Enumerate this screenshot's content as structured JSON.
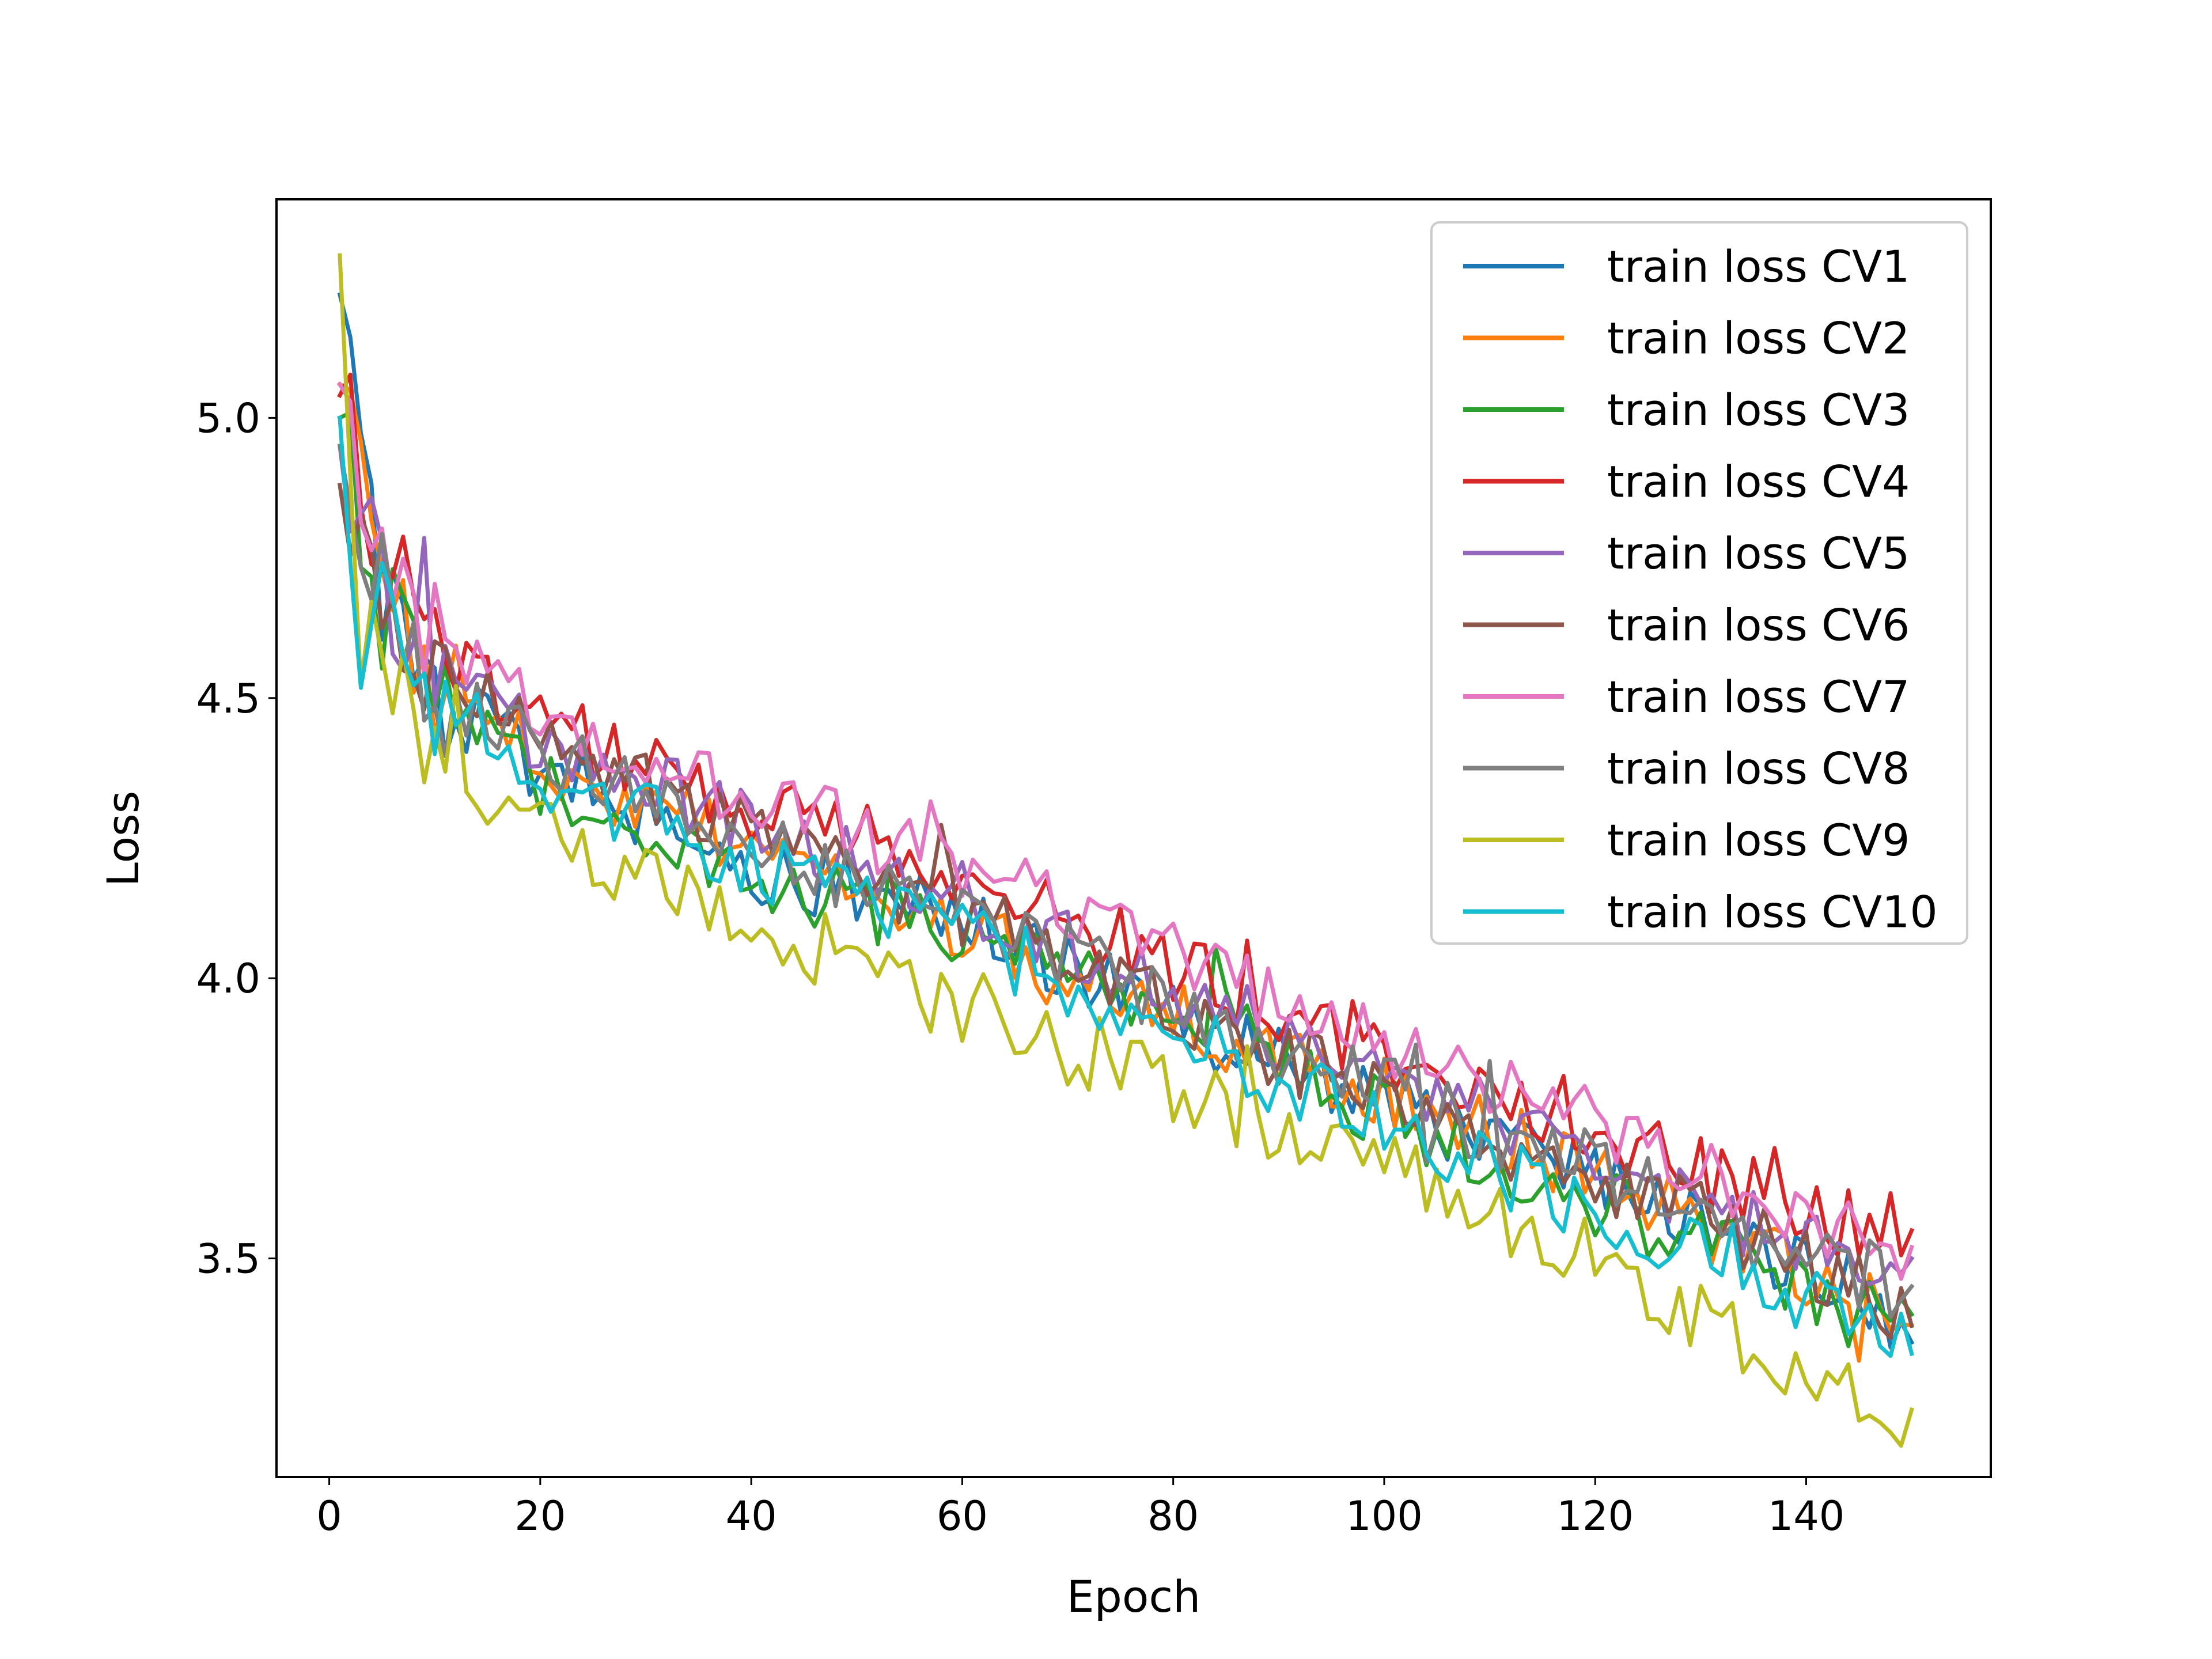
{
  "chart_data": {
    "type": "line",
    "title": "",
    "xlabel": "Epoch",
    "ylabel": "Loss",
    "xlim": [
      -5,
      157.5
    ],
    "ylim": [
      3.11,
      5.39
    ],
    "xticks": [
      0,
      20,
      40,
      60,
      80,
      100,
      120,
      140
    ],
    "xtick_labels": [
      "0",
      "20",
      "40",
      "60",
      "80",
      "100",
      "120",
      "140"
    ],
    "yticks": [
      3.5,
      4.0,
      4.5,
      5.0
    ],
    "ytick_labels": [
      "3.5",
      "4.0",
      "4.5",
      "5.0"
    ],
    "grid": false,
    "legend_position": "top-right",
    "x_start": 1,
    "x_end": 150,
    "series": [
      {
        "name": "train loss CV1",
        "color": "#1f77b4",
        "start": 5.22,
        "end": 3.35,
        "checkpoints": [
          [
            1,
            5.22
          ],
          [
            5,
            4.66
          ],
          [
            10,
            4.5
          ],
          [
            20,
            4.38
          ],
          [
            40,
            4.2
          ],
          [
            60,
            4.12
          ],
          [
            80,
            3.92
          ],
          [
            100,
            3.78
          ],
          [
            120,
            3.64
          ],
          [
            140,
            3.48
          ],
          [
            150,
            3.35
          ]
        ]
      },
      {
        "name": "train loss CV2",
        "color": "#ff7f0e",
        "start": 5.06,
        "end": 3.38,
        "checkpoints": [
          [
            1,
            5.06
          ],
          [
            5,
            4.7
          ],
          [
            10,
            4.52
          ],
          [
            20,
            4.4
          ],
          [
            40,
            4.22
          ],
          [
            60,
            4.08
          ],
          [
            80,
            3.93
          ],
          [
            100,
            3.8
          ],
          [
            120,
            3.65
          ],
          [
            140,
            3.47
          ],
          [
            150,
            3.38
          ]
        ]
      },
      {
        "name": "train loss CV3",
        "color": "#2ca02c",
        "start": 5.0,
        "end": 3.4,
        "checkpoints": [
          [
            1,
            5.0
          ],
          [
            5,
            4.66
          ],
          [
            10,
            4.48
          ],
          [
            20,
            4.36
          ],
          [
            40,
            4.19
          ],
          [
            60,
            4.08
          ],
          [
            80,
            3.93
          ],
          [
            100,
            3.76
          ],
          [
            120,
            3.6
          ],
          [
            140,
            3.45
          ],
          [
            150,
            3.4
          ]
        ]
      },
      {
        "name": "train loss CV4",
        "color": "#d62728",
        "start": 5.04,
        "end": 3.55,
        "checkpoints": [
          [
            1,
            5.04
          ],
          [
            5,
            4.75
          ],
          [
            10,
            4.58
          ],
          [
            20,
            4.46
          ],
          [
            40,
            4.3
          ],
          [
            60,
            4.2
          ],
          [
            80,
            4.02
          ],
          [
            100,
            3.86
          ],
          [
            120,
            3.72
          ],
          [
            140,
            3.58
          ],
          [
            150,
            3.55
          ]
        ]
      },
      {
        "name": "train loss CV5",
        "color": "#9467bd",
        "start": 4.95,
        "end": 3.5,
        "checkpoints": [
          [
            1,
            4.95
          ],
          [
            5,
            4.72
          ],
          [
            10,
            4.55
          ],
          [
            20,
            4.43
          ],
          [
            40,
            4.27
          ],
          [
            60,
            4.15
          ],
          [
            80,
            3.98
          ],
          [
            100,
            3.82
          ],
          [
            120,
            3.68
          ],
          [
            140,
            3.52
          ],
          [
            150,
            3.5
          ]
        ]
      },
      {
        "name": "train loss CV6",
        "color": "#8c564b",
        "start": 4.88,
        "end": 3.38,
        "checkpoints": [
          [
            1,
            4.88
          ],
          [
            5,
            4.7
          ],
          [
            10,
            4.55
          ],
          [
            20,
            4.42
          ],
          [
            40,
            4.25
          ],
          [
            60,
            4.12
          ],
          [
            80,
            3.95
          ],
          [
            100,
            3.78
          ],
          [
            120,
            3.65
          ],
          [
            140,
            3.5
          ],
          [
            150,
            3.38
          ]
        ]
      },
      {
        "name": "train loss CV7",
        "color": "#e377c2",
        "start": 5.06,
        "end": 3.52,
        "checkpoints": [
          [
            1,
            5.06
          ],
          [
            5,
            4.78
          ],
          [
            10,
            4.6
          ],
          [
            20,
            4.47
          ],
          [
            40,
            4.32
          ],
          [
            60,
            4.2
          ],
          [
            80,
            4.04
          ],
          [
            100,
            3.88
          ],
          [
            120,
            3.74
          ],
          [
            140,
            3.57
          ],
          [
            150,
            3.52
          ]
        ]
      },
      {
        "name": "train loss CV8",
        "color": "#7f7f7f",
        "start": 4.95,
        "end": 3.45,
        "checkpoints": [
          [
            1,
            4.95
          ],
          [
            5,
            4.7
          ],
          [
            10,
            4.52
          ],
          [
            20,
            4.4
          ],
          [
            40,
            4.24
          ],
          [
            60,
            4.12
          ],
          [
            80,
            3.95
          ],
          [
            100,
            3.8
          ],
          [
            120,
            3.66
          ],
          [
            140,
            3.5
          ],
          [
            150,
            3.45
          ]
        ]
      },
      {
        "name": "train loss CV9",
        "color": "#bcbd22",
        "start": 5.29,
        "end": 3.23,
        "checkpoints": [
          [
            1,
            5.29
          ],
          [
            3,
            4.57
          ],
          [
            5,
            4.62
          ],
          [
            10,
            4.4
          ],
          [
            20,
            4.27
          ],
          [
            40,
            4.08
          ],
          [
            60,
            3.94
          ],
          [
            80,
            3.8
          ],
          [
            100,
            3.66
          ],
          [
            120,
            3.5
          ],
          [
            140,
            3.3
          ],
          [
            148,
            3.2
          ],
          [
            150,
            3.23
          ]
        ]
      },
      {
        "name": "train loss CV10",
        "color": "#17becf",
        "start": 5.0,
        "end": 3.33,
        "checkpoints": [
          [
            1,
            5.0
          ],
          [
            3,
            4.52
          ],
          [
            5,
            4.7
          ],
          [
            10,
            4.5
          ],
          [
            20,
            4.37
          ],
          [
            40,
            4.2
          ],
          [
            60,
            4.08
          ],
          [
            80,
            3.9
          ],
          [
            100,
            3.74
          ],
          [
            120,
            3.58
          ],
          [
            140,
            3.43
          ],
          [
            150,
            3.33
          ]
        ]
      }
    ]
  }
}
